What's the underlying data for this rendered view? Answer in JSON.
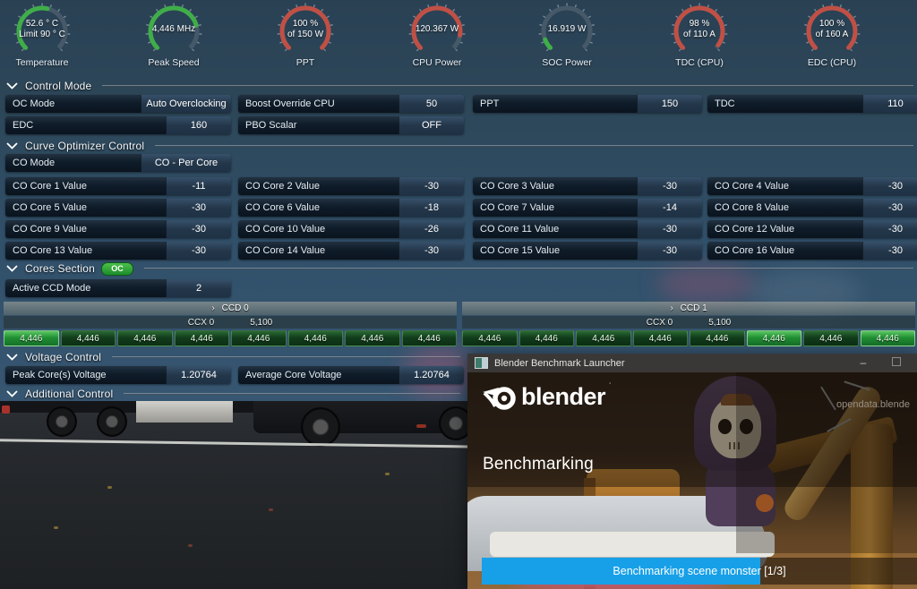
{
  "colors": {
    "green": "#3fae49",
    "red": "#c05045",
    "blue": "#17a0e8",
    "track": "#4d5f6e"
  },
  "gauges": [
    {
      "label": "Temperature",
      "line1": "52.6 ° C",
      "line2": "Limit 90 ° C",
      "pct": 55,
      "color": "green"
    },
    {
      "label": "Peak Speed",
      "line1": "4,446  MHz",
      "line2": "",
      "pct": 78,
      "color": "green"
    },
    {
      "label": "PPT",
      "line1": "100 %",
      "line2": "of 150 W",
      "pct": 100,
      "color": "red"
    },
    {
      "label": "CPU Power",
      "line1": "120.367 W",
      "line2": "",
      "pct": 87,
      "color": "red"
    },
    {
      "label": "SOC Power",
      "line1": "16.919 W",
      "line2": "",
      "pct": 9,
      "color": "green"
    },
    {
      "label": "TDC (CPU)",
      "line1": "98 %",
      "line2": "of 110 A",
      "pct": 97,
      "color": "red"
    },
    {
      "label": "EDC (CPU)",
      "line1": "100 %",
      "line2": "of 160 A",
      "pct": 100,
      "color": "red"
    }
  ],
  "control_mode": {
    "title": "Control Mode",
    "oc_mode": {
      "label": "OC Mode",
      "value": "Auto Overclocking"
    },
    "boost": {
      "label": "Boost Override CPU",
      "value": "50"
    },
    "ppt": {
      "label": "PPT",
      "value": "150"
    },
    "tdc": {
      "label": "TDC",
      "value": "110"
    },
    "edc": {
      "label": "EDC",
      "value": "160"
    },
    "pbo": {
      "label": "PBO Scalar",
      "value": "OFF"
    }
  },
  "curve_optimizer": {
    "title": "Curve Optimizer Control",
    "mode": {
      "label": "CO Mode",
      "value": "CO - Per Core"
    },
    "cores": [
      {
        "label": "CO Core 1 Value",
        "value": "-11"
      },
      {
        "label": "CO Core 2 Value",
        "value": "-30"
      },
      {
        "label": "CO Core 3 Value",
        "value": "-30"
      },
      {
        "label": "CO Core 4 Value",
        "value": "-30"
      },
      {
        "label": "CO Core 5 Value",
        "value": "-30"
      },
      {
        "label": "CO Core 6 Value",
        "value": "-18"
      },
      {
        "label": "CO Core 7 Value",
        "value": "-14"
      },
      {
        "label": "CO Core 8 Value",
        "value": "-30"
      },
      {
        "label": "CO Core 9 Value",
        "value": "-30"
      },
      {
        "label": "CO Core 10 Value",
        "value": "-26"
      },
      {
        "label": "CO Core 11 Value",
        "value": "-30"
      },
      {
        "label": "CO Core 12 Value",
        "value": "-30"
      },
      {
        "label": "CO Core 13 Value",
        "value": "-30"
      },
      {
        "label": "CO Core 14 Value",
        "value": "-30"
      },
      {
        "label": "CO Core 15 Value",
        "value": "-30"
      },
      {
        "label": "CO Core 16 Value",
        "value": "-30"
      }
    ]
  },
  "cores_section": {
    "title": "Cores Section",
    "badge": "OC",
    "ccd_mode": {
      "label": "Active CCD Mode",
      "value": "2"
    },
    "ccd0": {
      "name": "CCD 0",
      "ccx": "CCX 0",
      "peak": "5,100",
      "cores": [
        "4,446",
        "4,446",
        "4,446",
        "4,446",
        "4,446",
        "4,446",
        "4,446",
        "4,446"
      ]
    },
    "ccd1": {
      "name": "CCD 1",
      "ccx": "CCX 0",
      "peak": "5,100",
      "cores": [
        "4,446",
        "4,446",
        "4,446",
        "4,446",
        "4,446",
        "4,446",
        "4,446",
        "4,446"
      ]
    }
  },
  "voltage": {
    "title": "Voltage Control",
    "peak": {
      "label": "Peak Core(s) Voltage",
      "value": "1.20764"
    },
    "avg": {
      "label": "Average Core Voltage",
      "value": "1.20764"
    }
  },
  "additional": {
    "title": "Additional Control"
  },
  "blender": {
    "title": "Blender Benchmark Launcher",
    "minimize": "–",
    "brand": "blender",
    "brand_mark": "˙",
    "site": "opendata.blende",
    "heading": "Benchmarking",
    "progress_label": "Benchmarking scene monster [1/3]",
    "progress_pct": 64
  }
}
